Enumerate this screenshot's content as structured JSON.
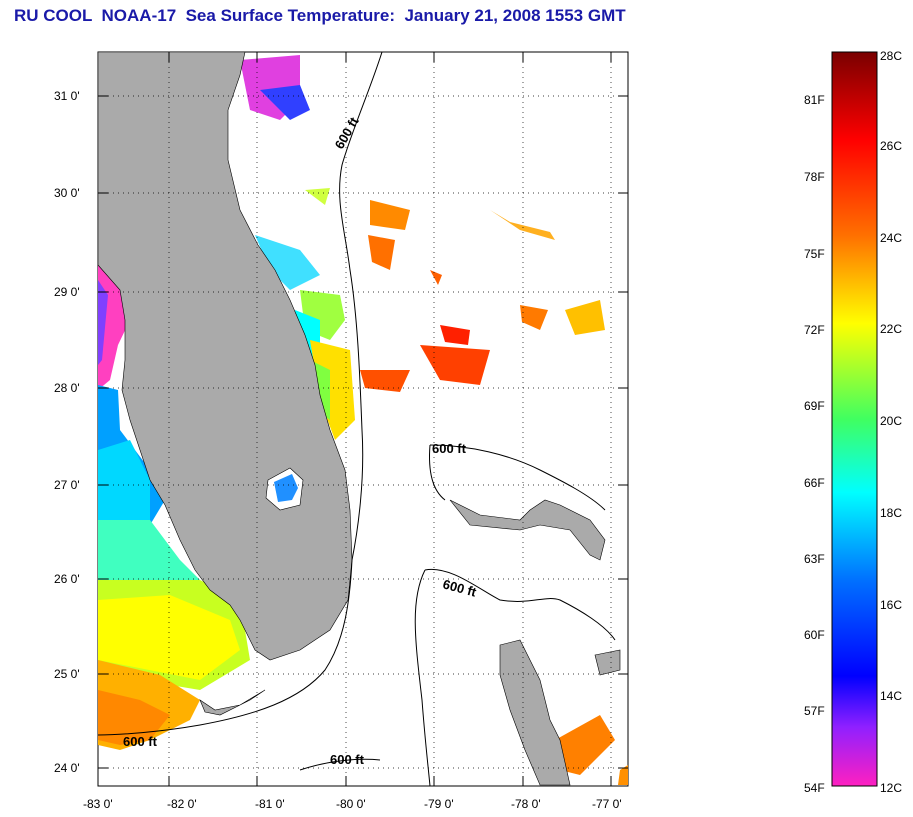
{
  "title": "RU COOL  NOAA-17  Sea Surface Temperature:  January 21, 2008 1553 GMT",
  "map": {
    "lat_labels": [
      "31 0'",
      "30 0'",
      "29 0'",
      "28 0'",
      "27 0'",
      "26 0'",
      "25 0'",
      "24 0'"
    ],
    "lon_labels": [
      "-83 0'",
      "-82 0'",
      "-81 0'",
      "-80 0'",
      "-79 0'",
      "-78 0'",
      "-77 0'"
    ],
    "contour_labels": [
      "600 ft",
      "600 ft",
      "600 ft",
      "600 ft",
      "600 ft"
    ],
    "colors": {
      "land": "#aaaaaa",
      "ocean_nodata": "#ffffff",
      "grid": "#000000"
    }
  },
  "colorbar": {
    "fahrenheit_labels": [
      "81F",
      "78F",
      "75F",
      "72F",
      "69F",
      "66F",
      "63F",
      "60F",
      "57F",
      "54F"
    ],
    "celsius_labels": [
      "28C",
      "26C",
      "24C",
      "22C",
      "20C",
      "18C",
      "16C",
      "14C",
      "12C"
    ],
    "colors_top_to_bottom": [
      "#8b0000",
      "#ff0000",
      "#ff8000",
      "#ffff00",
      "#80ff00",
      "#00ff80",
      "#00ffff",
      "#0080ff",
      "#0000ff",
      "#8000ff",
      "#ff00c0"
    ]
  }
}
